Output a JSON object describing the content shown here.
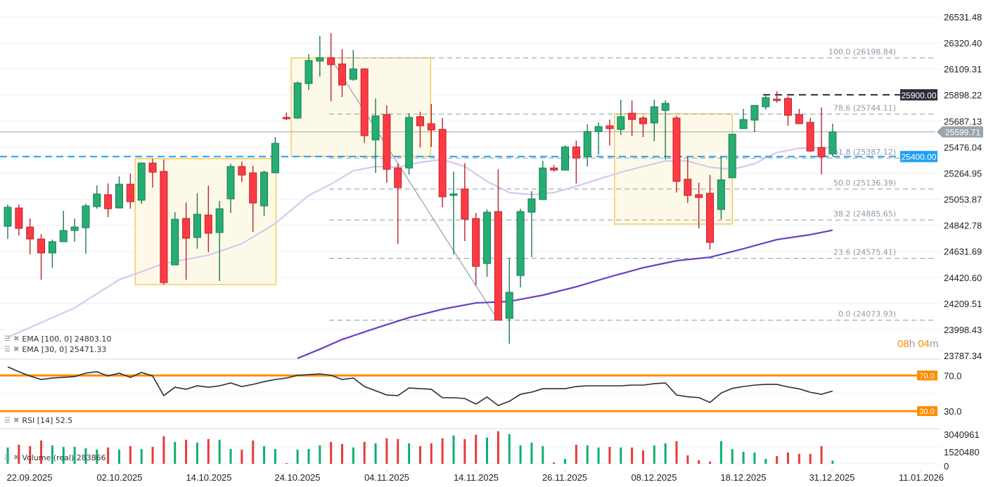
{
  "chart_data": {
    "type": "candlestick",
    "price_axis": {
      "ticks": [
        "26531.48",
        "26320.40",
        "26109.31",
        "25898.22",
        "25687.13",
        "25476.04",
        "25264.95",
        "25053.87",
        "24842.78",
        "24631.69",
        "24420.60",
        "24209.51",
        "23998.43",
        "23787.34"
      ],
      "range": [
        23787.34,
        26531.48
      ]
    },
    "x_tick_labels": [
      "22.09.2025",
      "02.10.2025",
      "14.10.2025",
      "24.10.2025",
      "04.11.2025",
      "14.11.2025",
      "26.11.2025",
      "08.12.2025",
      "18.12.2025",
      "31.12.2025",
      "11.01.2026"
    ],
    "candles_ohlc": [
      [
        24835,
        25011,
        24732,
        24989
      ],
      [
        24983,
        25011,
        24761,
        24818
      ],
      [
        24829,
        24898,
        24607,
        24732
      ],
      [
        24732,
        24772,
        24402,
        24619
      ],
      [
        24619,
        24727,
        24499,
        24710
      ],
      [
        24710,
        24960,
        24710,
        24801
      ],
      [
        24801,
        24898,
        24710,
        24829
      ],
      [
        24823,
        25017,
        24613,
        25000
      ],
      [
        24994,
        25165,
        24977,
        25097
      ],
      [
        25091,
        25182,
        24909,
        24977
      ],
      [
        24983,
        25239,
        24983,
        25176
      ],
      [
        25176,
        25262,
        24977,
        25034
      ],
      [
        25046,
        25353,
        25017,
        25347
      ],
      [
        25347,
        25381,
        25148,
        25273
      ],
      [
        25279,
        25376,
        24362,
        24379
      ],
      [
        24522,
        24949,
        24522,
        24892
      ],
      [
        24898,
        25028,
        24402,
        24738
      ],
      [
        24744,
        25102,
        24653,
        24932
      ],
      [
        24926,
        25165,
        24624,
        24778
      ],
      [
        24784,
        25040,
        24391,
        24977
      ],
      [
        25057,
        25342,
        24943,
        25319
      ],
      [
        25319,
        25359,
        25194,
        25250
      ],
      [
        25268,
        25325,
        24789,
        25023
      ],
      [
        25000,
        25285,
        24920,
        25273
      ],
      [
        25268,
        25558,
        25268,
        25507
      ],
      [
        25717,
        25757,
        25695,
        25712
      ],
      [
        25712,
        26008,
        25706,
        25996
      ],
      [
        25991,
        26230,
        25939,
        26178
      ],
      [
        26173,
        26378,
        26048,
        26201
      ],
      [
        26201,
        26400,
        25848,
        26144
      ],
      [
        26150,
        26270,
        25882,
        25979
      ],
      [
        26025,
        26264,
        26013,
        26110
      ],
      [
        26110,
        26115,
        25512,
        25569
      ],
      [
        25535,
        25871,
        25268,
        25729
      ],
      [
        25740,
        25814,
        25188,
        25296
      ],
      [
        25307,
        25342,
        24693,
        25148
      ],
      [
        25307,
        25751,
        25256,
        25717
      ],
      [
        25723,
        25763,
        25473,
        25649
      ],
      [
        25666,
        25825,
        25478,
        25615
      ],
      [
        25620,
        25712,
        24989,
        25074
      ],
      [
        25085,
        25279,
        24607,
        25097
      ],
      [
        25137,
        25347,
        24715,
        24892
      ],
      [
        24898,
        24943,
        24357,
        24510
      ],
      [
        24533,
        24971,
        24425,
        24949
      ],
      [
        24954,
        25296,
        24074,
        24074
      ],
      [
        24089,
        24579,
        23884,
        24300
      ],
      [
        24436,
        24977,
        24340,
        24954
      ],
      [
        24949,
        25120,
        24584,
        25057
      ],
      [
        25051,
        25364,
        25051,
        25307
      ],
      [
        25307,
        25330,
        25279,
        25290
      ],
      [
        25290,
        25490,
        25290,
        25478
      ],
      [
        25478,
        25529,
        25182,
        25387
      ],
      [
        25398,
        25660,
        25319,
        25603
      ],
      [
        25603,
        25677,
        25415,
        25643
      ],
      [
        25649,
        25700,
        25490,
        25626
      ],
      [
        25620,
        25860,
        25575,
        25723
      ],
      [
        25751,
        25854,
        25564,
        25700
      ],
      [
        25712,
        25729,
        25558,
        25666
      ],
      [
        25672,
        25860,
        25524,
        25803
      ],
      [
        25774,
        25854,
        25376,
        25831
      ],
      [
        25712,
        25729,
        25108,
        25199
      ],
      [
        25216,
        25398,
        25023,
        25085
      ],
      [
        25091,
        25188,
        24818,
        25068
      ],
      [
        25102,
        25250,
        24647,
        24704
      ],
      [
        24971,
        25398,
        24892,
        25211
      ],
      [
        25228,
        25581,
        25228,
        25581
      ],
      [
        25626,
        25786,
        25626,
        25700
      ],
      [
        25695,
        25814,
        25598,
        25814
      ],
      [
        25803,
        25899,
        25780,
        25877
      ],
      [
        25865,
        25928,
        25837,
        25854
      ],
      [
        25871,
        25888,
        25649,
        25734
      ],
      [
        25740,
        25786,
        25666,
        25666
      ],
      [
        25677,
        25712,
        25438,
        25444
      ],
      [
        25473,
        25797,
        25256,
        25398
      ],
      [
        25421,
        25666,
        25404,
        25599.71
      ]
    ],
    "ema30": {
      "label": "EMA [30, 0] 25471.33",
      "color": "#d5c9ee",
      "points": [
        [
          0,
          23935
        ],
        [
          2,
          24015
        ],
        [
          6,
          24174
        ],
        [
          10,
          24402
        ],
        [
          14,
          24533
        ],
        [
          18,
          24601
        ],
        [
          21,
          24693
        ],
        [
          24,
          24858
        ],
        [
          27,
          25085
        ],
        [
          29,
          25176
        ],
        [
          31,
          25285
        ],
        [
          33,
          25319
        ],
        [
          35,
          25313
        ],
        [
          37,
          25353
        ],
        [
          39,
          25376
        ],
        [
          41,
          25319
        ],
        [
          43,
          25199
        ],
        [
          45,
          25108
        ],
        [
          47,
          25091
        ],
        [
          49,
          25108
        ],
        [
          51,
          25159
        ],
        [
          53,
          25216
        ],
        [
          55,
          25273
        ],
        [
          57,
          25319
        ],
        [
          59,
          25364
        ],
        [
          61,
          25364
        ],
        [
          63,
          25313
        ],
        [
          65,
          25296
        ],
        [
          67,
          25342
        ],
        [
          69,
          25433
        ],
        [
          71,
          25467
        ],
        [
          74,
          25471.33
        ]
      ]
    },
    "ema100": {
      "label": "EMA [100, 0] 24803.10",
      "color": "#6a3fc2",
      "points": [
        [
          26,
          23765
        ],
        [
          28,
          23839
        ],
        [
          30,
          23918
        ],
        [
          33,
          24009
        ],
        [
          36,
          24095
        ],
        [
          39,
          24163
        ],
        [
          42,
          24214
        ],
        [
          45,
          24226
        ],
        [
          48,
          24277
        ],
        [
          51,
          24345
        ],
        [
          54,
          24425
        ],
        [
          57,
          24499
        ],
        [
          60,
          24556
        ],
        [
          63,
          24584
        ],
        [
          66,
          24653
        ],
        [
          69,
          24727
        ],
        [
          72,
          24767
        ],
        [
          74,
          24803.1
        ]
      ]
    },
    "fibonacci": [
      {
        "label": "100.0 (26198.84)",
        "price": 26198.84
      },
      {
        "label": "78.6 (25744.11)",
        "price": 25744.11
      },
      {
        "label": "61.8 (25387.12)",
        "price": 25387.12
      },
      {
        "label": "50.0 (25136.39)",
        "price": 25136.39
      },
      {
        "label": "38.2 (24885.65)",
        "price": 24885.65
      },
      {
        "label": "23.6 (24575.41)",
        "price": 24575.41
      },
      {
        "label": "0.0 (24073.93)",
        "price": 24073.93
      }
    ],
    "horizontal_lines": [
      {
        "label": "25900.00",
        "price": 25900.0,
        "color": "#2a2e39"
      },
      {
        "label": "25400.00",
        "price": 25400.0,
        "color": "#1e9ff2"
      }
    ],
    "current_price": {
      "label": "25599.71",
      "price": 25599.71,
      "color": "#9aa5ad"
    },
    "rsi": {
      "label": "RSI [14] 52.5",
      "levels": [
        {
          "label": "70.0",
          "value": 70
        },
        {
          "label": "30.0",
          "value": 30
        }
      ],
      "axis_ticks": [
        "70.0",
        "30.0"
      ],
      "level_color": "#ff8c00",
      "values": [
        79.7,
        74.2,
        69.4,
        65.5,
        67.1,
        67.9,
        68.7,
        72.6,
        74.2,
        69.4,
        72.6,
        67.9,
        73.4,
        69.4,
        47.4,
        56.8,
        54.5,
        58.4,
        56.8,
        58.4,
        61.6,
        57.6,
        60.0,
        63.1,
        65.5,
        67.1,
        70.2,
        71.0,
        71.8,
        70.2,
        65.5,
        67.1,
        57.6,
        52.9,
        48.1,
        47.4,
        56.0,
        55.2,
        54.5,
        45.0,
        45.0,
        44.2,
        37.9,
        45.8,
        36.3,
        41.0,
        48.9,
        51.3,
        55.2,
        55.2,
        55.2,
        57.6,
        58.4,
        58.4,
        58.4,
        58.4,
        59.2,
        59.2,
        60.8,
        61.6,
        48.1,
        46.0,
        45.2,
        39.7,
        50.3,
        55.5,
        57.6,
        59.2,
        60.0,
        60.0,
        57.1,
        55.0,
        51.1,
        48.9,
        52.5
      ]
    },
    "volume": {
      "label": "Volume (real) 283866",
      "axis_ticks": [
        "3040961",
        "1520480",
        "0"
      ],
      "values": [
        1437000,
        1687000,
        1562000,
        2062000,
        1625000,
        1500000,
        1500000,
        1375000,
        1250000,
        1437000,
        1250000,
        1562000,
        1312000,
        1500000,
        2437000,
        1937000,
        2125000,
        1875000,
        2187000,
        2125000,
        1312000,
        1250000,
        2062000,
        1562000,
        1312000,
        62000,
        1250000,
        1312000,
        1625000,
        1937000,
        1750000,
        1437000,
        1937000,
        1812000,
        2250000,
        2187000,
        1812000,
        1562000,
        1812000,
        2250000,
        2500000,
        2187000,
        2562000,
        2312000,
        2875000,
        2625000,
        1625000,
        1875000,
        1562000,
        125000,
        437000,
        1687000,
        1625000,
        1437000,
        1500000,
        1437000,
        1437000,
        1187000,
        1625000,
        1812000,
        2000000,
        750000,
        312000,
        187000,
        2000000,
        1312000,
        1062000,
        1000000,
        437000,
        687000,
        1000000,
        875000,
        875000,
        1562000,
        283866
      ]
    },
    "colors": {
      "up": "#26ad73",
      "down": "#ff3a45",
      "zone_fill": "#fdf9e8",
      "zone_stroke": "#f5c037"
    }
  },
  "legends": {
    "ema100": "EMA [100, 0] 24803.10",
    "ema30": "EMA [30, 0] 25471.33",
    "rsi": "RSI [14] 52.5",
    "volume": "Volume (real) 283866"
  },
  "timer": {
    "hours": "08",
    "h": "h",
    "minutes": "04",
    "m": "m"
  }
}
